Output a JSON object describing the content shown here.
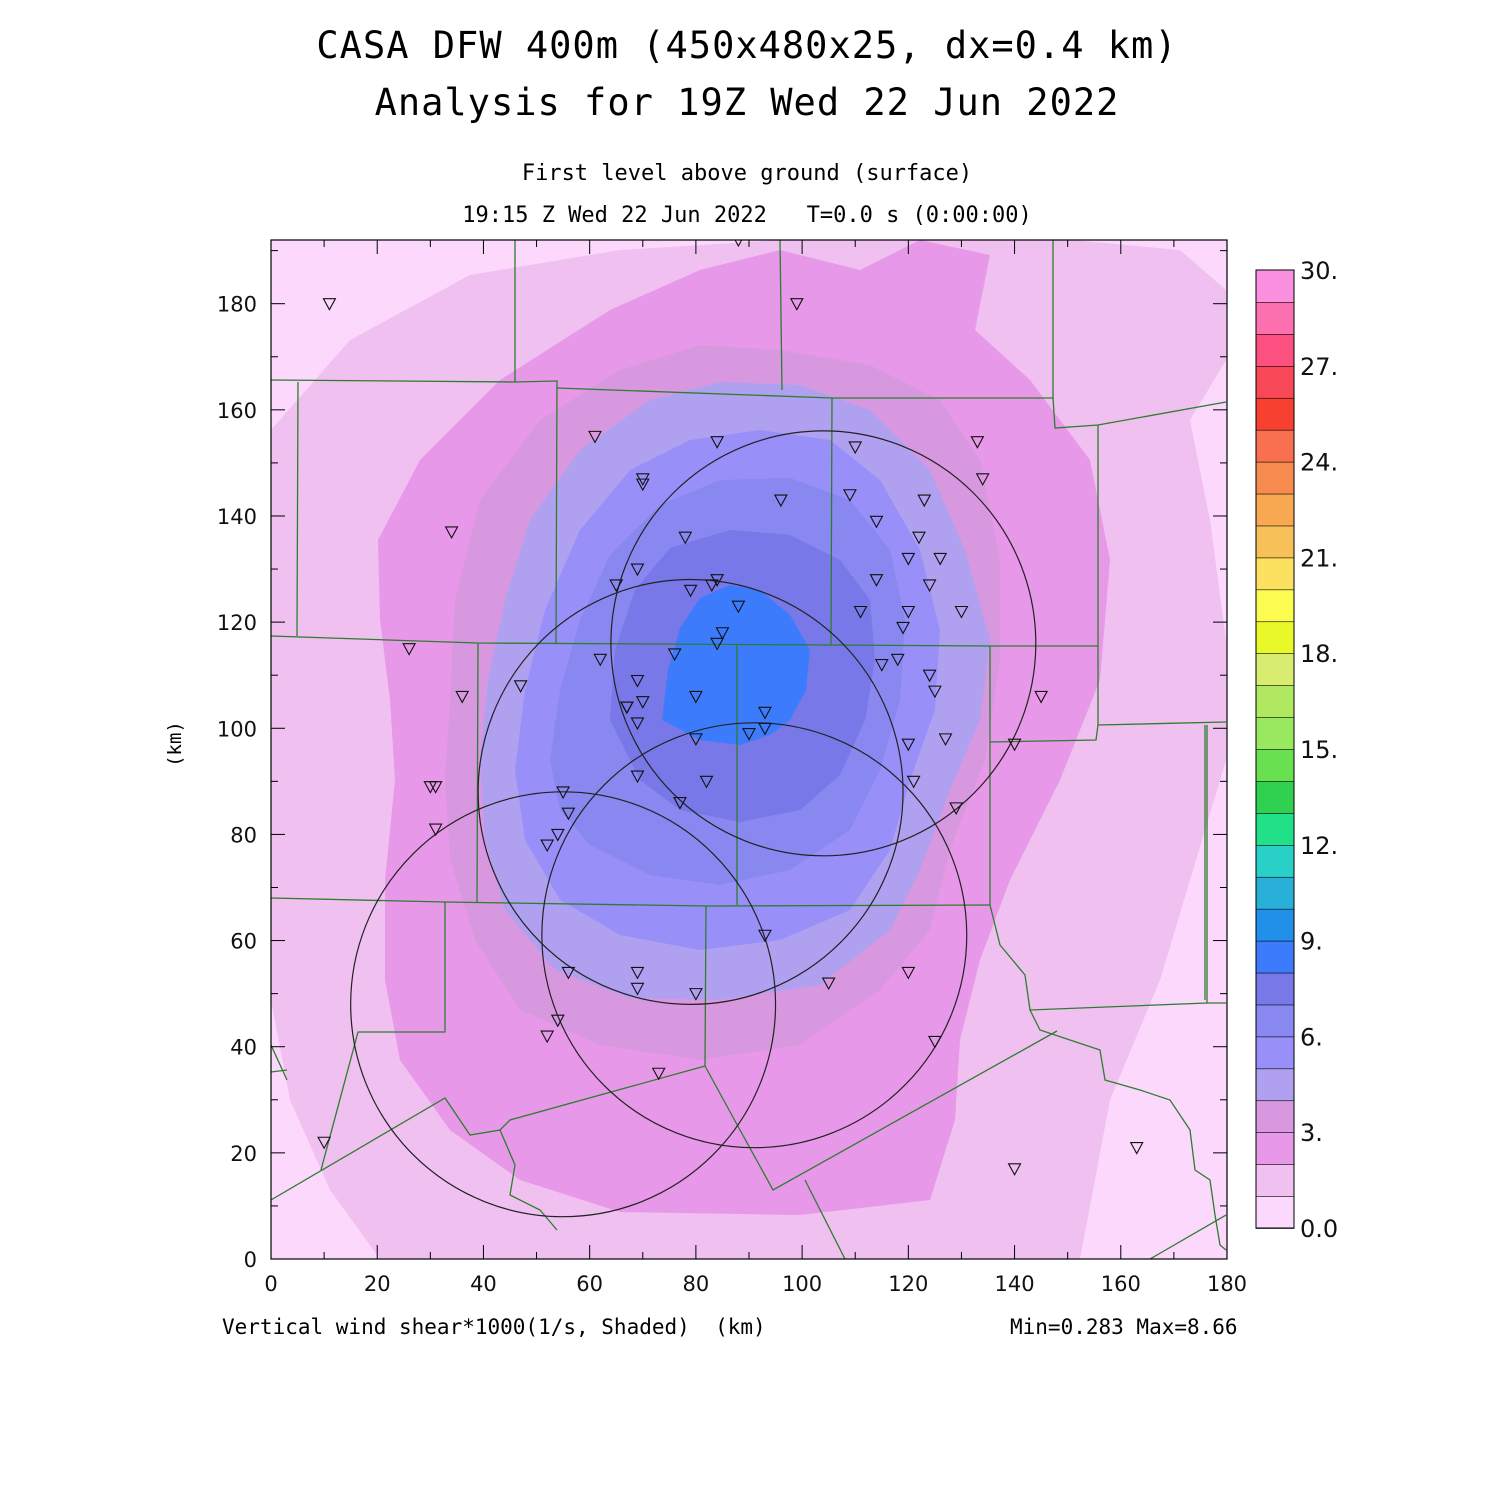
{
  "title_line1": "CASA DFW 400m (450x480x25, dx=0.4 km)",
  "title_line2": "Analysis for 19Z Wed 22 Jun 2022",
  "subtitle_line1": "First level above ground (surface)",
  "subtitle_line2": "19:15 Z Wed 22 Jun 2022   T=0.0 s (0:00:00)",
  "ylabel": "(km)",
  "footer_left": "Vertical wind shear*1000(1/s, Shaded)  (km)",
  "footer_right": "Min=0.283 Max=8.66",
  "axes": {
    "x_ticks": [
      "0",
      "20",
      "40",
      "60",
      "80",
      "100",
      "120",
      "140",
      "160",
      "180"
    ],
    "y_ticks": [
      "0",
      "20",
      "40",
      "60",
      "80",
      "100",
      "120",
      "140",
      "160",
      "180"
    ],
    "xlim": [
      0,
      180
    ],
    "ylim": [
      0,
      192
    ]
  },
  "colorbar": {
    "labels": [
      "0.0",
      "3.",
      "6.",
      "9.",
      "12.",
      "15.",
      "18.",
      "21.",
      "24.",
      "27.",
      "30."
    ],
    "range": [
      0,
      30
    ],
    "step": 1.5,
    "colors": [
      "#fcd8fc",
      "#f0c0f0",
      "#e898e8",
      "#d898e0",
      "#b0a0f0",
      "#9890f8",
      "#8888f0",
      "#7878e8",
      "#3c7cfc",
      "#2090e8",
      "#28b0d8",
      "#28d0c8",
      "#20e088",
      "#30d050",
      "#68e050",
      "#98e860",
      "#b0e860",
      "#d8ec70",
      "#e8f828",
      "#fcfc50",
      "#fce060",
      "#f8c058",
      "#f8a850",
      "#f88c50",
      "#f87050",
      "#f84030",
      "#f84858",
      "#fc5080",
      "#fc70b0",
      "#fc90e0"
    ]
  },
  "field": {
    "name": "Vertical wind shear*1000",
    "units": "1/s",
    "min": 0.283,
    "max": 8.66
  },
  "radars": [
    {
      "center_km": [
        104,
        116
      ],
      "radius_km": 40
    },
    {
      "center_km": [
        79,
        88
      ],
      "radius_km": 40
    },
    {
      "center_km": [
        91,
        61
      ],
      "radius_km": 40
    },
    {
      "center_km": [
        55,
        48
      ],
      "radius_km": 40
    }
  ],
  "stations_km": [
    [
      11,
      180
    ],
    [
      88,
      192
    ],
    [
      99,
      180
    ],
    [
      61,
      155
    ],
    [
      84,
      154
    ],
    [
      110,
      153
    ],
    [
      133,
      154
    ],
    [
      70,
      147
    ],
    [
      70,
      146
    ],
    [
      134,
      147
    ],
    [
      109,
      144
    ],
    [
      96,
      143
    ],
    [
      123,
      143
    ],
    [
      34,
      137
    ],
    [
      114,
      139
    ],
    [
      78,
      136
    ],
    [
      122,
      136
    ],
    [
      120,
      132
    ],
    [
      126,
      132
    ],
    [
      69,
      130
    ],
    [
      65,
      127
    ],
    [
      83,
      127
    ],
    [
      84,
      128
    ],
    [
      79,
      126
    ],
    [
      114,
      128
    ],
    [
      124,
      127
    ],
    [
      88,
      123
    ],
    [
      111,
      122
    ],
    [
      120,
      122
    ],
    [
      130,
      122
    ],
    [
      119,
      119
    ],
    [
      85,
      118
    ],
    [
      84,
      116
    ],
    [
      26,
      115
    ],
    [
      76,
      114
    ],
    [
      115,
      112
    ],
    [
      118,
      113
    ],
    [
      62,
      113
    ],
    [
      124,
      110
    ],
    [
      69,
      109
    ],
    [
      125,
      107
    ],
    [
      47,
      108
    ],
    [
      36,
      106
    ],
    [
      70,
      105
    ],
    [
      67,
      104
    ],
    [
      67,
      104
    ],
    [
      80,
      106
    ],
    [
      145,
      106
    ],
    [
      93,
      103
    ],
    [
      69,
      101
    ],
    [
      93,
      100
    ],
    [
      90,
      99
    ],
    [
      80,
      98
    ],
    [
      120,
      97
    ],
    [
      127,
      98
    ],
    [
      140,
      97
    ],
    [
      30,
      89
    ],
    [
      31,
      89
    ],
    [
      69,
      91
    ],
    [
      82,
      90
    ],
    [
      121,
      90
    ],
    [
      55,
      88
    ],
    [
      77,
      86
    ],
    [
      129,
      85
    ],
    [
      56,
      84
    ],
    [
      31,
      81
    ],
    [
      54,
      80
    ],
    [
      52,
      78
    ],
    [
      93,
      61
    ],
    [
      56,
      54
    ],
    [
      69,
      54
    ],
    [
      69,
      51
    ],
    [
      80,
      50
    ],
    [
      105,
      52
    ],
    [
      120,
      54
    ],
    [
      54,
      45
    ],
    [
      52,
      42
    ],
    [
      125,
      41
    ],
    [
      73,
      35
    ],
    [
      10,
      22
    ],
    [
      163,
      21
    ],
    [
      140,
      17
    ]
  ]
}
